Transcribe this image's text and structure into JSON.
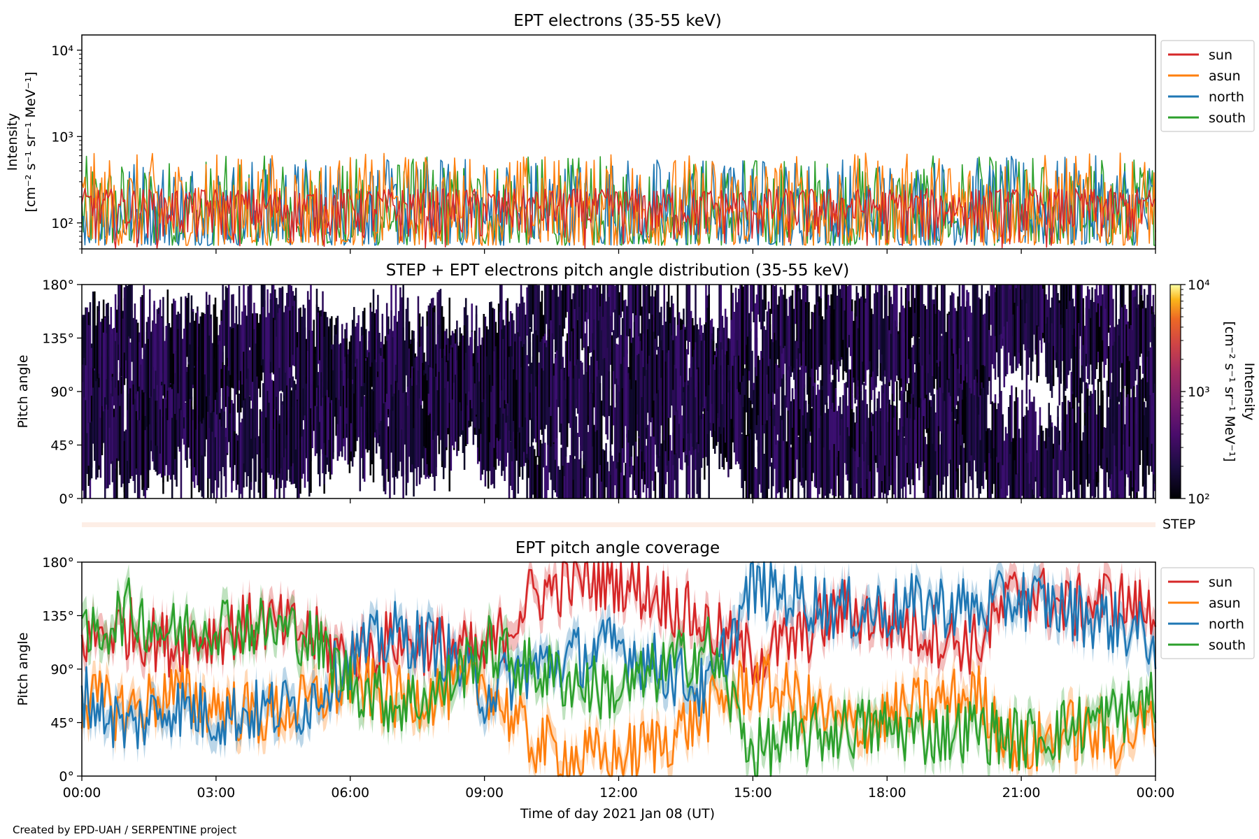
{
  "credit": "Created by EPD-UAH / SERPENTINE project",
  "xlabel": "Time of day 2021 Jan 08 (UT)",
  "x_tick_labels": [
    "00:00",
    "03:00",
    "06:00",
    "09:00",
    "12:00",
    "15:00",
    "18:00",
    "21:00",
    "00:00"
  ],
  "chart_data": [
    {
      "type": "line",
      "title": "EPT electrons (35-55 keV)",
      "ylabel_line1": "Intensity",
      "ylabel_line2": "[cm⁻² s⁻¹ sr⁻¹ MeV⁻¹]",
      "yscale": "log",
      "ylim": [
        50,
        15000
      ],
      "y_ticks": [
        {
          "value": 100,
          "label": "10²"
        },
        {
          "value": 1000,
          "label": "10³"
        },
        {
          "value": 10000,
          "label": "10⁴"
        }
      ],
      "x": "time 00:00 to 24:00 UT, ~1-minute cadence",
      "legend_position": "outside-right",
      "series": [
        {
          "name": "sun",
          "color": "#d62728",
          "typical_range": [
            50,
            250
          ]
        },
        {
          "name": "asun",
          "color": "#ff7f0e",
          "typical_range": [
            55,
            650
          ]
        },
        {
          "name": "north",
          "color": "#1f77b4",
          "typical_range": [
            55,
            600
          ]
        },
        {
          "name": "south",
          "color": "#2ca02c",
          "typical_range": [
            55,
            600
          ]
        }
      ]
    },
    {
      "type": "heatmap",
      "title": "STEP + EPT electrons pitch angle distribution (35-55 keV)",
      "ylabel": "Pitch angle",
      "ylim": [
        0,
        180
      ],
      "y_ticks": [
        "0°",
        "45°",
        "90°",
        "135°",
        "180°"
      ],
      "colorbar": {
        "label_line1": "Intensity",
        "label_line2": "[cm⁻² s⁻¹ sr⁻¹ MeV⁻¹]",
        "scale": "log",
        "range": [
          100,
          10000
        ],
        "tick_labels": [
          "10²",
          "10³",
          "10⁴"
        ],
        "colormap": "inferno"
      },
      "values_note": "values mostly near 10² (dark purple/black) across pitch angles following the EPT sensor coverage"
    },
    {
      "type": "line",
      "title": "STEP strip",
      "label": "STEP",
      "color": "#fdeee6"
    },
    {
      "type": "line",
      "title": "EPT pitch angle coverage",
      "ylabel": "Pitch angle",
      "ylim": [
        0,
        180
      ],
      "y_ticks": [
        "0°",
        "45°",
        "90°",
        "135°",
        "180°"
      ],
      "legend_position": "outside-right",
      "x_hours": [
        0,
        1,
        2,
        3,
        4,
        5,
        6,
        7,
        8,
        9,
        10,
        11,
        12,
        13,
        14,
        15,
        16,
        17,
        18,
        19,
        20,
        21,
        22,
        23,
        24
      ],
      "series": [
        {
          "name": "sun",
          "color": "#d62728",
          "values": [
            115,
            125,
            110,
            120,
            130,
            120,
            100,
            115,
            110,
            100,
            150,
            165,
            165,
            150,
            125,
            100,
            115,
            140,
            130,
            120,
            110,
            160,
            140,
            150,
            135
          ]
        },
        {
          "name": "asun",
          "color": "#ff7f0e",
          "values": [
            65,
            55,
            70,
            60,
            50,
            60,
            80,
            65,
            70,
            80,
            30,
            15,
            15,
            30,
            55,
            80,
            65,
            40,
            50,
            60,
            70,
            20,
            40,
            30,
            45
          ]
        },
        {
          "name": "north",
          "color": "#1f77b4",
          "values": [
            70,
            40,
            60,
            50,
            55,
            60,
            100,
            120,
            110,
            70,
            90,
            100,
            110,
            90,
            70,
            160,
            150,
            140,
            140,
            145,
            140,
            150,
            140,
            130,
            115
          ]
        },
        {
          "name": "south",
          "color": "#2ca02c",
          "values": [
            110,
            140,
            120,
            130,
            125,
            120,
            80,
            60,
            70,
            110,
            90,
            80,
            70,
            90,
            110,
            20,
            30,
            40,
            40,
            35,
            40,
            30,
            40,
            50,
            65
          ]
        }
      ]
    }
  ]
}
